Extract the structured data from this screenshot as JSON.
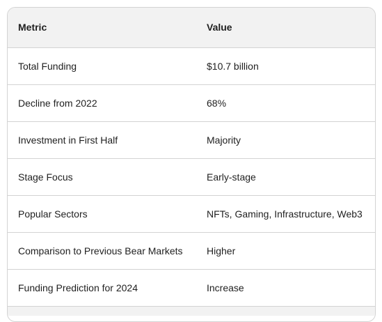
{
  "table": {
    "headers": [
      "Metric",
      "Value"
    ],
    "rows": [
      {
        "metric": "Total Funding",
        "value": "$10.7 billion"
      },
      {
        "metric": "Decline from 2022",
        "value": "68%"
      },
      {
        "metric": "Investment in First Half",
        "value": "Majority"
      },
      {
        "metric": "Stage Focus",
        "value": "Early-stage"
      },
      {
        "metric": "Popular Sectors",
        "value": "NFTs, Gaming, Infrastructure, Web3"
      },
      {
        "metric": "Comparison to Previous Bear Markets",
        "value": "Higher"
      },
      {
        "metric": "Funding Prediction for 2024",
        "value": "Increase"
      }
    ]
  }
}
